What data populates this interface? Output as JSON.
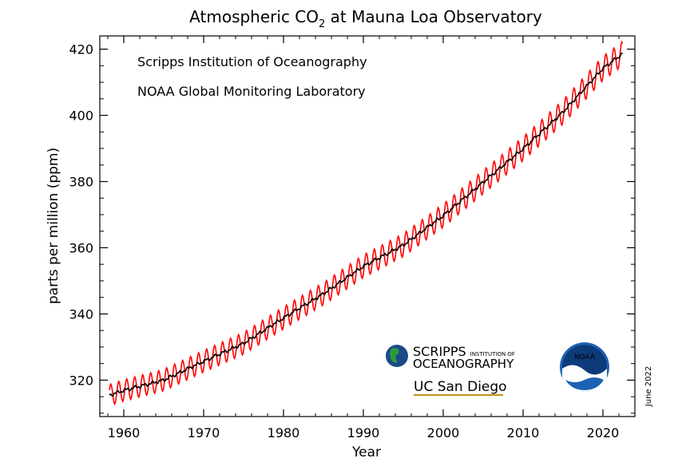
{
  "chart_data": {
    "type": "line",
    "title_main": "Atmospheric CO",
    "title_sub": "2",
    "title_rest": " at Mauna Loa Observatory",
    "xlabel": "Year",
    "ylabel": "parts per million (ppm)",
    "xlim": [
      1957,
      2024
    ],
    "ylim": [
      309,
      424
    ],
    "x_ticks": [
      1960,
      1970,
      1980,
      1990,
      2000,
      2010,
      2020
    ],
    "x_tick_labels": [
      "1960",
      "1970",
      "1980",
      "1990",
      "2000",
      "2010",
      "2020"
    ],
    "y_ticks": [
      320,
      340,
      360,
      380,
      400,
      420
    ],
    "y_tick_labels": [
      "320",
      "340",
      "360",
      "380",
      "400",
      "420"
    ],
    "grid": false,
    "annotations": [
      "Scripps Institution of Oceanography",
      "NOAA Global Monitoring Laboratory"
    ],
    "date_stamp": "June 2022",
    "series": [
      {
        "style": "monthly",
        "color": "#ff0000",
        "seasonal_amplitude_ppm": 3.2,
        "x_start": 1958.2,
        "x_end": 2022.45
      },
      {
        "style": "seasonally-corrected trend",
        "color": "#000000",
        "x": [
          1958,
          1960,
          1965,
          1970,
          1975,
          1980,
          1985,
          1990,
          1995,
          2000,
          2005,
          2010,
          2015,
          2020,
          2022.4
        ],
        "values": [
          315.3,
          316.9,
          320.0,
          325.7,
          331.1,
          338.8,
          346.1,
          354.4,
          360.8,
          369.7,
          379.8,
          389.9,
          401.0,
          414.2,
          418.5
        ]
      }
    ]
  },
  "logos": {
    "scripps_line1": "SCRIPPS",
    "scripps_small1": "INSTITUTION OF",
    "scripps_line2": "OCEANOGRAPHY",
    "ucsd": "UC San Diego",
    "noaa": "NOAA"
  },
  "colors": {
    "monthly": "#ff0000",
    "trend": "#000000",
    "noaa_blue": "#1d62b5",
    "scripps_blue": "#1b4a8a",
    "ucsd_gold": "#c69214"
  }
}
